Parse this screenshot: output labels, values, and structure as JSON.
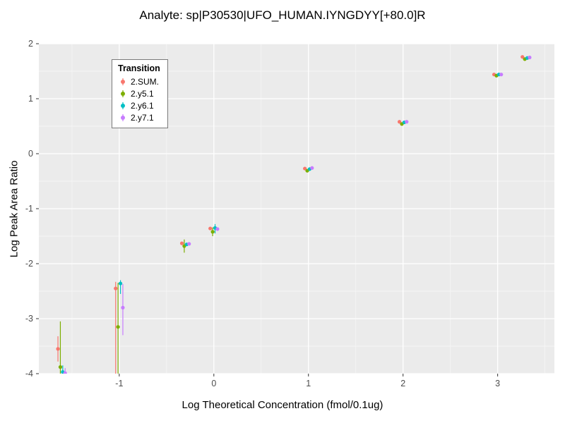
{
  "chart_data": {
    "type": "scatter",
    "title": "Analyte: sp|P30530|UFO_HUMAN.IYNGDYY[+80.0]R",
    "xlabel": "Log Theoretical Concentration (fmol/0.1ug)",
    "ylabel": "Log Peak Area Ratio",
    "xlim": [
      -1.85,
      3.6
    ],
    "ylim": [
      -4,
      2
    ],
    "x_ticks": [
      -1,
      0,
      1,
      2,
      3
    ],
    "y_ticks": [
      -4,
      -3,
      -2,
      -1,
      0,
      1,
      2
    ],
    "x_minor_ticks": [
      -1.5,
      -0.5,
      0.5,
      1.5,
      2.5,
      3.5
    ],
    "y_minor_ticks": [
      -3.5,
      -2.5,
      -1.5,
      -0.5,
      0.5,
      1.5
    ],
    "grid": true,
    "panel_bg": "#EBEBEB",
    "grid_major_color": "#FFFFFF",
    "grid_minor_color": "#F7F7F7",
    "tick_label_color": "#4d4d4d",
    "legend_title": "Transition",
    "legend_position": "top-left-inside",
    "series": [
      {
        "name": "2.SUM.",
        "color": "#F8766D",
        "points": [
          {
            "x": -1.61,
            "y": -3.55,
            "lo": -3.78,
            "hi": -3.32
          },
          {
            "x": -1.0,
            "y": -2.45,
            "lo": -4.0,
            "hi": -2.33
          },
          {
            "x": -0.3,
            "y": -1.63,
            "lo": null,
            "hi": null
          },
          {
            "x": 0.0,
            "y": -1.36,
            "lo": null,
            "hi": null
          },
          {
            "x": 1.0,
            "y": -0.27,
            "lo": null,
            "hi": null
          },
          {
            "x": 2.0,
            "y": 0.58,
            "lo": null,
            "hi": null
          },
          {
            "x": 3.0,
            "y": 1.44,
            "lo": null,
            "hi": null
          },
          {
            "x": 3.3,
            "y": 1.76,
            "lo": null,
            "hi": null
          }
        ]
      },
      {
        "name": "2.y5.1",
        "color": "#7CAE00",
        "points": [
          {
            "x": -1.61,
            "y": -3.88,
            "lo": -4.0,
            "hi": -3.05
          },
          {
            "x": -1.0,
            "y": -3.15,
            "lo": -4.0,
            "hi": -2.35
          },
          {
            "x": -0.3,
            "y": -1.68,
            "lo": -1.8,
            "hi": -1.56
          },
          {
            "x": 0.0,
            "y": -1.42,
            "lo": -1.5,
            "hi": -1.34
          },
          {
            "x": 1.0,
            "y": -0.31,
            "lo": null,
            "hi": null
          },
          {
            "x": 2.0,
            "y": 0.54,
            "lo": null,
            "hi": null
          },
          {
            "x": 3.0,
            "y": 1.42,
            "lo": null,
            "hi": null
          },
          {
            "x": 3.3,
            "y": 1.72,
            "lo": null,
            "hi": null
          }
        ]
      },
      {
        "name": "2.y6.1",
        "color": "#00BFC4",
        "points": [
          {
            "x": -1.61,
            "y": -3.97,
            "lo": -4.0,
            "hi": -3.85
          },
          {
            "x": -1.0,
            "y": -2.36,
            "lo": -2.55,
            "hi": -2.3
          },
          {
            "x": -0.3,
            "y": -1.65,
            "lo": null,
            "hi": null
          },
          {
            "x": 0.0,
            "y": -1.35,
            "lo": -1.45,
            "hi": -1.28
          },
          {
            "x": 1.0,
            "y": -0.28,
            "lo": null,
            "hi": null
          },
          {
            "x": 2.0,
            "y": 0.57,
            "lo": null,
            "hi": null
          },
          {
            "x": 3.0,
            "y": 1.44,
            "lo": null,
            "hi": null
          },
          {
            "x": 3.3,
            "y": 1.74,
            "lo": null,
            "hi": null
          }
        ]
      },
      {
        "name": "2.y7.1",
        "color": "#C77CFF",
        "points": [
          {
            "x": -1.61,
            "y": -3.99,
            "lo": -4.0,
            "hi": -3.9
          },
          {
            "x": -1.0,
            "y": -2.8,
            "lo": -3.3,
            "hi": -2.37
          },
          {
            "x": -0.3,
            "y": -1.64,
            "lo": null,
            "hi": null
          },
          {
            "x": 0.0,
            "y": -1.37,
            "lo": null,
            "hi": null
          },
          {
            "x": 1.0,
            "y": -0.26,
            "lo": null,
            "hi": null
          },
          {
            "x": 2.0,
            "y": 0.58,
            "lo": null,
            "hi": null
          },
          {
            "x": 3.0,
            "y": 1.44,
            "lo": null,
            "hi": null
          },
          {
            "x": 3.3,
            "y": 1.75,
            "lo": null,
            "hi": null
          }
        ]
      }
    ]
  }
}
